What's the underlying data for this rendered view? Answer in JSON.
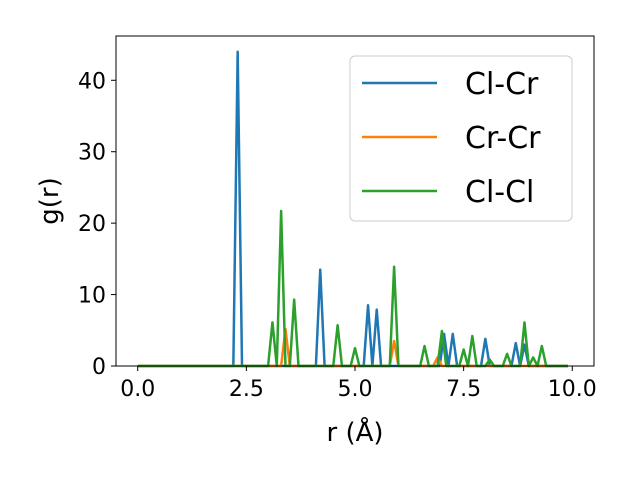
{
  "chart_data": {
    "type": "line",
    "xlabel": "r (Å)",
    "ylabel": "g(r)",
    "xlim": [
      -0.5,
      10.5
    ],
    "ylim": [
      0,
      46.2
    ],
    "xticks": [
      0.0,
      2.5,
      5.0,
      7.5,
      10.0
    ],
    "xtick_labels": [
      "0.0",
      "2.5",
      "5.0",
      "7.5",
      "10.0"
    ],
    "yticks": [
      0,
      10,
      20,
      30,
      40
    ],
    "ytick_labels": [
      "0",
      "10",
      "20",
      "30",
      "40"
    ],
    "grid": false,
    "legend_position": "top-right",
    "series": [
      {
        "name": "Cl-Cr",
        "color": "#1f77b4",
        "points": [
          [
            0.0,
            0
          ],
          [
            2.2,
            0
          ],
          [
            2.3,
            44.0
          ],
          [
            2.4,
            0
          ],
          [
            4.1,
            0
          ],
          [
            4.2,
            13.5
          ],
          [
            4.3,
            0
          ],
          [
            5.2,
            0
          ],
          [
            5.3,
            8.5
          ],
          [
            5.4,
            0
          ],
          [
            5.5,
            7.9
          ],
          [
            5.6,
            0
          ],
          [
            6.95,
            0
          ],
          [
            7.05,
            4.5
          ],
          [
            7.15,
            0
          ],
          [
            7.25,
            4.5
          ],
          [
            7.35,
            0
          ],
          [
            7.9,
            0
          ],
          [
            8.0,
            3.8
          ],
          [
            8.1,
            0
          ],
          [
            8.6,
            0
          ],
          [
            8.7,
            3.2
          ],
          [
            8.8,
            0
          ],
          [
            8.9,
            3.0
          ],
          [
            9.0,
            0
          ],
          [
            9.9,
            0
          ]
        ]
      },
      {
        "name": "Cr-Cr",
        "color": "#ff7f0e",
        "points": [
          [
            0.0,
            0
          ],
          [
            3.3,
            0
          ],
          [
            3.4,
            5.2
          ],
          [
            3.5,
            0
          ],
          [
            5.8,
            0
          ],
          [
            5.9,
            3.5
          ],
          [
            6.0,
            0
          ],
          [
            6.8,
            0
          ],
          [
            6.9,
            1.2
          ],
          [
            7.0,
            0
          ],
          [
            9.9,
            0
          ]
        ]
      },
      {
        "name": "Cl-Cl",
        "color": "#2ca02c",
        "points": [
          [
            0.0,
            0
          ],
          [
            3.0,
            0
          ],
          [
            3.1,
            6.1
          ],
          [
            3.2,
            0
          ],
          [
            3.3,
            21.7
          ],
          [
            3.4,
            0
          ],
          [
            3.5,
            0
          ],
          [
            3.6,
            9.3
          ],
          [
            3.7,
            0
          ],
          [
            4.5,
            0
          ],
          [
            4.6,
            5.7
          ],
          [
            4.7,
            0
          ],
          [
            4.9,
            0
          ],
          [
            5.0,
            2.5
          ],
          [
            5.1,
            0
          ],
          [
            5.8,
            0
          ],
          [
            5.9,
            13.9
          ],
          [
            6.0,
            0
          ],
          [
            6.5,
            0
          ],
          [
            6.6,
            2.8
          ],
          [
            6.7,
            0
          ],
          [
            6.9,
            0
          ],
          [
            7.0,
            4.9
          ],
          [
            7.1,
            0
          ],
          [
            7.4,
            0
          ],
          [
            7.5,
            2.3
          ],
          [
            7.6,
            0
          ],
          [
            7.7,
            4.2
          ],
          [
            7.8,
            0
          ],
          [
            8.0,
            0
          ],
          [
            8.1,
            0.9
          ],
          [
            8.2,
            0
          ],
          [
            8.4,
            0
          ],
          [
            8.5,
            1.7
          ],
          [
            8.6,
            0
          ],
          [
            8.8,
            0
          ],
          [
            8.9,
            6.1
          ],
          [
            9.0,
            0
          ],
          [
            9.1,
            1.2
          ],
          [
            9.2,
            0
          ],
          [
            9.3,
            2.8
          ],
          [
            9.4,
            0
          ],
          [
            9.9,
            0
          ]
        ]
      }
    ]
  }
}
